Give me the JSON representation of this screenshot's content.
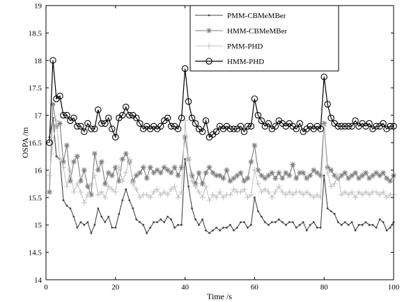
{
  "chart_data": {
    "type": "line",
    "xlabel": "Time /s",
    "ylabel": "OSPA /m",
    "xlim": [
      0,
      100
    ],
    "ylim": [
      14,
      19
    ],
    "xticks": [
      0,
      20,
      40,
      60,
      80,
      100
    ],
    "yticks": [
      14,
      14.5,
      15,
      15.5,
      16,
      16.5,
      17,
      17.5,
      18,
      18.5,
      19
    ],
    "grid": false,
    "legend_position": "top-right",
    "x": [
      1,
      2,
      3,
      4,
      5,
      6,
      7,
      8,
      9,
      10,
      11,
      12,
      13,
      14,
      15,
      16,
      17,
      18,
      19,
      20,
      21,
      22,
      23,
      24,
      25,
      26,
      27,
      28,
      29,
      30,
      31,
      32,
      33,
      34,
      35,
      36,
      37,
      38,
      39,
      40,
      41,
      42,
      43,
      44,
      45,
      46,
      47,
      48,
      49,
      50,
      51,
      52,
      53,
      54,
      55,
      56,
      57,
      58,
      59,
      60,
      61,
      62,
      63,
      64,
      65,
      66,
      67,
      68,
      69,
      70,
      71,
      72,
      73,
      74,
      75,
      76,
      77,
      78,
      79,
      80,
      81,
      82,
      83,
      84,
      85,
      86,
      87,
      88,
      89,
      90,
      91,
      92,
      93,
      94,
      95,
      96,
      97,
      98,
      99,
      100
    ],
    "series": [
      {
        "name": "PMM-CBMeMBer",
        "color": "#444444",
        "marker": "dot",
        "values": [
          16.6,
          16.95,
          16.25,
          16.2,
          15.45,
          15.35,
          15.3,
          15.15,
          14.95,
          15.05,
          15.0,
          15.05,
          14.85,
          15.0,
          15.3,
          15.15,
          15.05,
          15.15,
          14.95,
          14.95,
          15.2,
          15.45,
          15.65,
          15.45,
          15.3,
          15.1,
          15.05,
          15.0,
          14.85,
          14.95,
          15.05,
          15.05,
          15.1,
          15.05,
          15.15,
          15.1,
          14.95,
          15.0,
          15.0,
          16.2,
          15.7,
          15.3,
          15.1,
          15.0,
          15.1,
          14.9,
          14.85,
          14.9,
          14.95,
          14.9,
          14.95,
          14.95,
          15.0,
          14.9,
          14.95,
          15.05,
          15.05,
          14.95,
          15.0,
          15.5,
          15.25,
          15.15,
          15.05,
          15.0,
          15.05,
          15.05,
          15.1,
          15.05,
          15.0,
          15.05,
          15.05,
          14.95,
          15.0,
          15.05,
          14.9,
          15.0,
          15.05,
          14.95,
          14.95,
          15.9,
          15.3,
          15.25,
          15.2,
          15.05,
          15.0,
          15.05,
          15.0,
          15.05,
          14.9,
          15.0,
          15.0,
          15.05,
          15.0,
          15.0,
          14.95,
          15.1,
          15.05,
          14.9,
          14.95,
          15.05
        ]
      },
      {
        "name": "HMM-CBMeMBer",
        "color": "#7d7d7d",
        "marker": "star",
        "values": [
          15.6,
          17.2,
          16.8,
          16.85,
          16.15,
          16.45,
          15.8,
          16.15,
          16.25,
          15.8,
          16.0,
          15.7,
          15.55,
          16.3,
          16.0,
          16.15,
          15.75,
          15.95,
          15.9,
          16.05,
          15.8,
          16.2,
          16.3,
          16.15,
          15.8,
          15.9,
          15.95,
          16.05,
          15.85,
          16.05,
          15.95,
          16.0,
          15.95,
          16.05,
          16.0,
          15.95,
          16.05,
          15.9,
          16.05,
          16.6,
          16.2,
          15.9,
          15.75,
          15.95,
          15.75,
          15.95,
          16.05,
          15.95,
          15.9,
          15.9,
          15.85,
          16.0,
          15.8,
          15.85,
          15.9,
          15.95,
          15.8,
          15.85,
          16.15,
          16.45,
          16.0,
          15.9,
          15.85,
          15.9,
          15.95,
          15.85,
          15.95,
          15.85,
          15.95,
          15.9,
          16.1,
          15.85,
          15.95,
          15.95,
          15.85,
          15.9,
          16.0,
          15.95,
          15.9,
          16.85,
          16.05,
          16.0,
          15.9,
          15.85,
          15.9,
          15.95,
          15.85,
          15.9,
          15.95,
          15.85,
          15.9,
          15.95,
          15.85,
          15.9,
          15.95,
          15.9,
          15.95,
          15.85,
          15.8,
          15.9
        ]
      },
      {
        "name": "PMM-PHD",
        "color": "#c4c4c4",
        "marker": "plus",
        "values": [
          15.9,
          16.5,
          16.9,
          16.2,
          16.05,
          15.7,
          16.0,
          15.6,
          15.75,
          15.6,
          15.4,
          15.55,
          15.75,
          15.9,
          15.55,
          15.6,
          15.5,
          15.7,
          15.65,
          15.6,
          16.05,
          15.8,
          15.95,
          16.2,
          15.75,
          15.65,
          15.5,
          15.55,
          15.55,
          15.5,
          15.6,
          15.65,
          15.55,
          15.6,
          15.55,
          15.65,
          15.7,
          15.5,
          15.6,
          16.9,
          16.2,
          15.8,
          15.7,
          15.6,
          15.5,
          15.7,
          15.45,
          15.55,
          15.5,
          15.6,
          15.5,
          15.55,
          15.55,
          15.65,
          15.6,
          15.6,
          15.65,
          15.5,
          15.55,
          16.0,
          15.75,
          15.6,
          15.65,
          15.6,
          15.5,
          15.6,
          15.7,
          15.6,
          15.55,
          15.6,
          15.55,
          15.6,
          15.6,
          15.55,
          15.6,
          15.55,
          15.5,
          15.55,
          15.5,
          16.8,
          15.95,
          15.7,
          15.75,
          15.9,
          15.55,
          15.6,
          15.55,
          15.6,
          15.5,
          15.6,
          15.55,
          15.6,
          15.55,
          15.6,
          15.6,
          15.55,
          15.6,
          15.5,
          15.55,
          15.55
        ]
      },
      {
        "name": "HMM-PHD",
        "color": "#000000",
        "marker": "circle",
        "values": [
          16.5,
          18.0,
          17.3,
          17.35,
          17.0,
          17.0,
          16.9,
          16.95,
          16.8,
          16.8,
          16.7,
          16.85,
          16.75,
          16.75,
          17.1,
          16.85,
          16.85,
          16.95,
          16.75,
          16.6,
          16.95,
          17.0,
          17.15,
          17.0,
          17.0,
          16.95,
          16.85,
          16.75,
          16.8,
          16.75,
          16.8,
          16.75,
          16.8,
          16.9,
          16.95,
          16.8,
          16.8,
          16.75,
          16.95,
          17.85,
          17.25,
          16.95,
          16.85,
          16.75,
          16.7,
          16.9,
          16.6,
          16.65,
          16.7,
          16.8,
          16.75,
          16.8,
          16.75,
          16.75,
          16.75,
          16.8,
          16.7,
          16.8,
          16.8,
          17.3,
          17.0,
          16.9,
          16.8,
          16.85,
          16.75,
          16.8,
          16.9,
          16.85,
          16.8,
          16.85,
          16.8,
          16.75,
          16.85,
          16.7,
          16.75,
          16.8,
          16.75,
          16.8,
          16.75,
          17.7,
          17.2,
          16.95,
          16.85,
          16.8,
          16.8,
          16.8,
          16.8,
          16.8,
          16.9,
          16.8,
          16.85,
          16.8,
          16.85,
          16.75,
          16.8,
          16.8,
          16.85,
          16.75,
          16.8,
          16.8
        ]
      }
    ]
  }
}
